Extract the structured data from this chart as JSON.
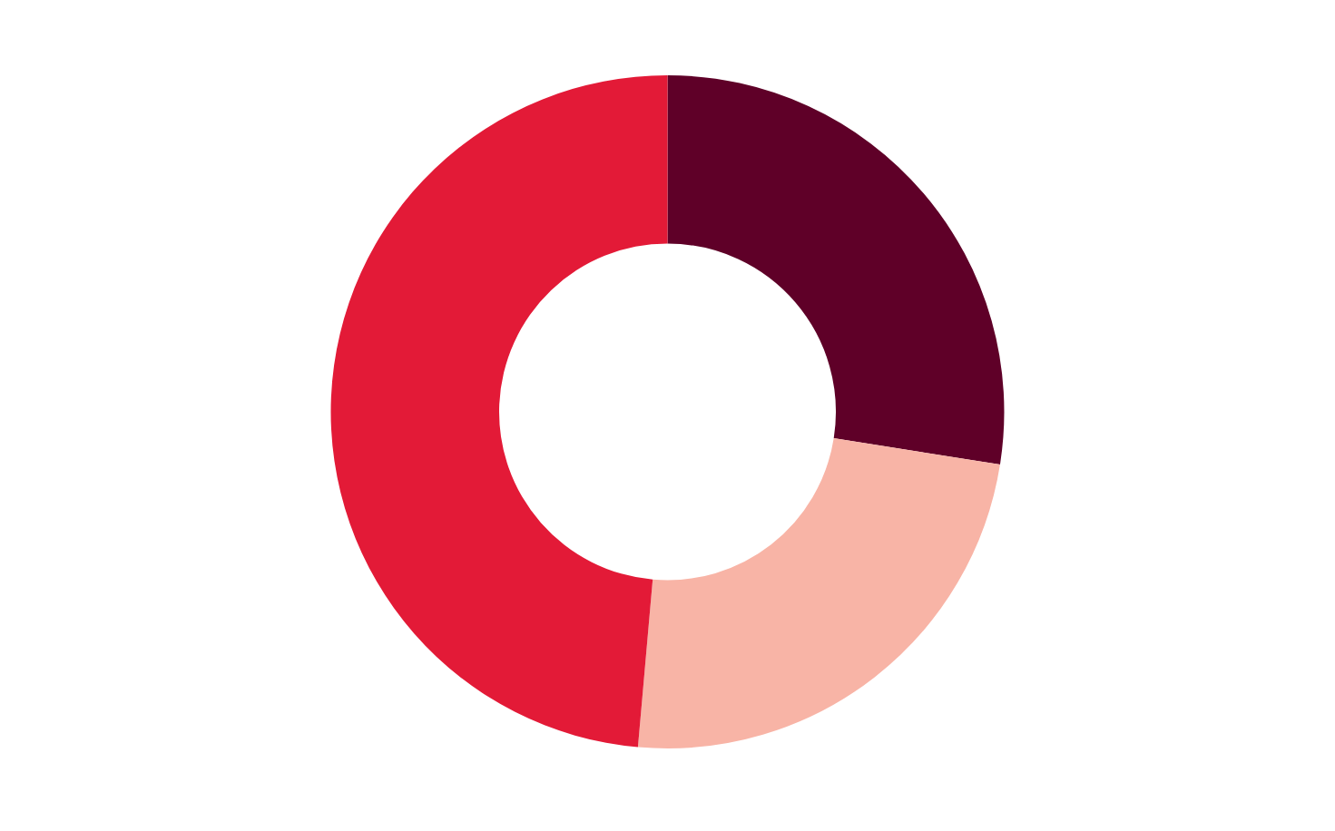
{
  "chart_data": {
    "type": "donut",
    "categories": [
      null,
      null,
      null
    ],
    "values": [
      27.5,
      23.9,
      48.6
    ],
    "colors": [
      "#5f0028",
      "#f8b4a6",
      "#e31a37"
    ]
  }
}
